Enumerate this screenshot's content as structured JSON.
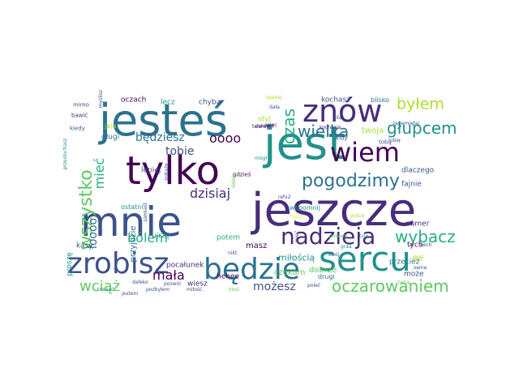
{
  "colors": {
    "background": "#ffffff",
    "palette": [
      "#440154",
      "#472d7b",
      "#3b528b",
      "#2c728e",
      "#21918c",
      "#28ae80",
      "#5ec962",
      "#addc30",
      "#fde725"
    ]
  },
  "words": [
    {
      "text": "jesteś",
      "color": "#2c728e"
    },
    {
      "text": "jest",
      "color": "#21918c"
    },
    {
      "text": "tylko",
      "color": "#440154"
    },
    {
      "text": "mnie",
      "color": "#3b528b"
    },
    {
      "text": "jeszcze",
      "color": "#472d7b"
    },
    {
      "text": "znów",
      "color": "#472d7b"
    },
    {
      "text": "sercu",
      "color": "#21918c"
    },
    {
      "text": "zrobisz",
      "color": "#3b528b"
    },
    {
      "text": "będzie",
      "color": "#2c728e"
    },
    {
      "text": "wiem",
      "color": "#440154"
    },
    {
      "text": "nadzieja",
      "color": "#472d7b"
    },
    {
      "text": "pogodzimy",
      "color": "#2c728e"
    },
    {
      "text": "oczarowaniem",
      "color": "#5ec962"
    },
    {
      "text": "wszystko",
      "color": "#5ec962"
    },
    {
      "text": "głupcem",
      "color": "#21918c"
    },
    {
      "text": "byłem",
      "color": "#addc30"
    },
    {
      "text": "wielka",
      "color": "#2c728e"
    },
    {
      "text": "czas",
      "color": "#28ae80"
    },
    {
      "text": "wybacz",
      "color": "#28ae80"
    },
    {
      "text": "dzisiaj",
      "color": "#472d7b"
    },
    {
      "text": "bólem",
      "color": "#28ae80"
    },
    {
      "text": "mała",
      "color": "#440154"
    },
    {
      "text": "wciąż",
      "color": "#5ec962"
    },
    {
      "text": "możesz",
      "color": "#3b528b"
    },
    {
      "text": "będziesz",
      "color": "#2c728e"
    },
    {
      "text": "oooo",
      "color": "#440154"
    },
    {
      "text": "tobie",
      "color": "#3b528b"
    },
    {
      "text": "łoooo",
      "color": "#2c728e"
    },
    {
      "text": "mieć",
      "color": "#28ae80"
    },
    {
      "text": "miłością",
      "color": "#21918c"
    },
    {
      "text": "twoja",
      "color": "#addc30"
    },
    {
      "text": "przyjdzie",
      "color": "#2c728e"
    },
    {
      "text": "czekam",
      "color": "#5ec962"
    },
    {
      "text": "przecież",
      "color": "#2c728e"
    },
    {
      "text": "dobrze",
      "color": "#5ec962"
    },
    {
      "text": "numer",
      "color": "#472d7b"
    },
    {
      "text": "fajnie",
      "color": "#3b528b"
    },
    {
      "text": "dlaczego",
      "color": "#3b528b"
    },
    {
      "text": "lepiej",
      "color": "#3b528b"
    },
    {
      "text": "ujrzę",
      "color": "#21918c"
    },
    {
      "text": "pocałunek",
      "color": "#472d7b"
    },
    {
      "text": "potem",
      "color": "#28ae80"
    },
    {
      "text": "styl",
      "color": "#addc30"
    },
    {
      "text": "lecz",
      "color": "#21918c"
    },
    {
      "text": "chyba",
      "color": "#3b528b"
    },
    {
      "text": "oczach",
      "color": "#440154"
    },
    {
      "text": "kochasz",
      "color": "#3b528b"
    },
    {
      "text": "blisko",
      "color": "#2c728e"
    },
    {
      "text": "długi",
      "color": "#2c728e"
    },
    {
      "text": "wiesz",
      "color": "#472d7b"
    },
    {
      "text": "drugi",
      "color": "#2c728e"
    },
    {
      "text": "hehee",
      "color": "#440154"
    },
    {
      "text": "kasy",
      "color": "#3b528b"
    },
    {
      "text": "tych",
      "color": "#440154"
    },
    {
      "text": "może",
      "color": "#3b528b"
    },
    {
      "text": "proszę",
      "color": "#21918c"
    },
    {
      "text": "ostatni",
      "color": "#21918c"
    },
    {
      "text": "wspomnij",
      "color": "#21918c"
    },
    {
      "text": "kiedy",
      "color": "#3b528b"
    },
    {
      "text": "jaja",
      "color": "#addc30"
    },
    {
      "text": "mimo",
      "color": "#3b528b"
    },
    {
      "text": "bawić",
      "color": "#472d7b"
    },
    {
      "text": "mówisz",
      "color": "#3b528b"
    },
    {
      "text": "spadaj",
      "color": "#addc30"
    },
    {
      "text": "dała",
      "color": "#3b528b"
    },
    {
      "text": "twardy",
      "color": "#440154"
    },
    {
      "text": "więc",
      "color": "#440154"
    },
    {
      "text": "kochanie",
      "color": "#472d7b"
    },
    {
      "text": "siła",
      "color": "#3b528b"
    },
    {
      "text": "kidy",
      "color": "#3b528b"
    },
    {
      "text": "tobą",
      "color": "#3b528b"
    },
    {
      "text": "zapamiętaj",
      "color": "#3b528b"
    },
    {
      "text": "lubię",
      "color": "#3b528b"
    },
    {
      "text": "mógł",
      "color": "#21918c"
    },
    {
      "text": "gdzieś",
      "color": "#440154"
    },
    {
      "text": "refx2",
      "color": "#3b528b"
    },
    {
      "text": "widzę",
      "color": "#addc30"
    },
    {
      "text": "dość",
      "color": "#addc30"
    },
    {
      "text": "tyle",
      "color": "#21918c"
    },
    {
      "text": "graa",
      "color": "#21918c"
    },
    {
      "text": "mam",
      "color": "#fde725"
    },
    {
      "text": "swój",
      "color": "#3b528b"
    },
    {
      "text": "dzień",
      "color": "#5ec962"
    },
    {
      "text": "pech",
      "color": "#3b528b"
    },
    {
      "text": "same",
      "color": "#3b528b"
    },
    {
      "text": "dość",
      "color": "#addc30"
    },
    {
      "text": "nikt",
      "color": "#3b528b"
    },
    {
      "text": "pozwól",
      "color": "#3b528b"
    },
    {
      "text": "zamiast",
      "color": "#3b528b"
    },
    {
      "text": "pokażę",
      "color": "#3b528b"
    },
    {
      "text": "przesłuchasz",
      "color": "#21918c"
    },
    {
      "text": "myślisz",
      "color": "#3b528b"
    },
    {
      "text": "dałeko",
      "color": "#3b528b"
    },
    {
      "text": "trwaać",
      "color": "#21918c"
    },
    {
      "text": "jestem",
      "color": "#3b528b"
    },
    {
      "text": "pozbyłem",
      "color": "#3b528b"
    },
    {
      "text": "miłość",
      "color": "#3b528b"
    },
    {
      "text": "ktoś",
      "color": "#5ec962"
    },
    {
      "text": "poleć",
      "color": "#3b528b"
    },
    {
      "text": "mieć",
      "color": "#3b528b"
    },
    {
      "text": "pobiera",
      "color": "#5ec962"
    },
    {
      "text": "nocą",
      "color": "#5ec962"
    },
    {
      "text": "masz",
      "color": "#440154"
    }
  ]
}
